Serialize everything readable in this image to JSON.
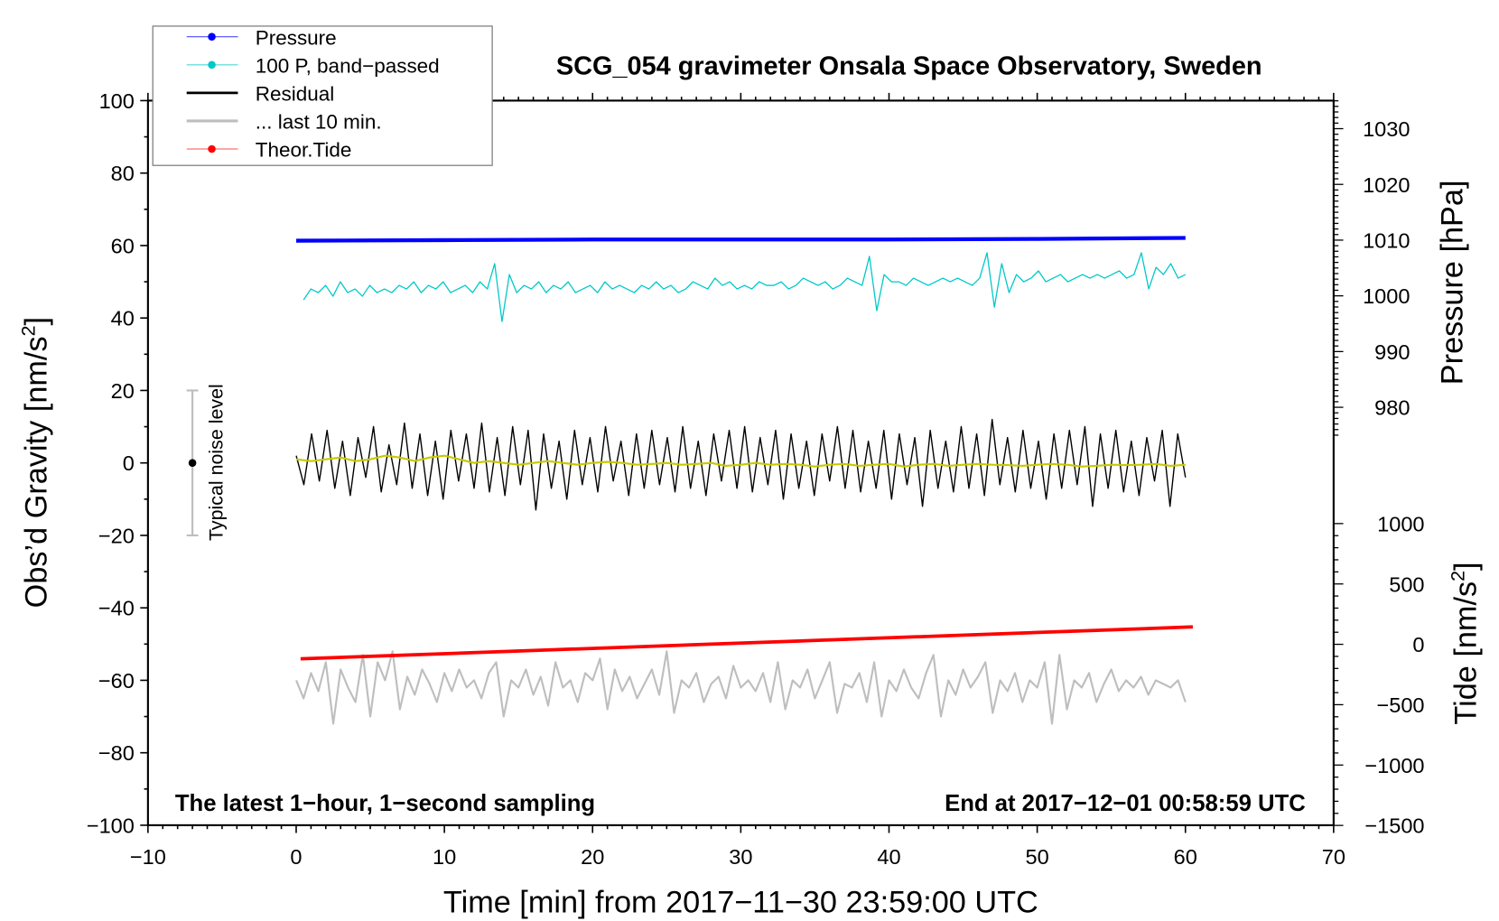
{
  "chart_data": {
    "type": "line",
    "title": "SCG_054 gravimeter Onsala Space Observatory, Sweden",
    "xlabel": "Time [min] from 2017−11−30 23:59:00 UTC",
    "ylabel": "Obs’d Gravity [nm/s",
    "ylabel_sup": "2",
    "ylabel_end": "]",
    "y2label": "Pressure [hPa]",
    "y3label": "Tide [nm/s",
    "y3label_sup": "2",
    "y3label_end": "]",
    "annotation_left": "The latest 1−hour, 1−second sampling",
    "annotation_right": "End at 2017−12−01 00:58:59 UTC",
    "noise_label": "Typical noise level",
    "xlim": [
      -10,
      70
    ],
    "ylim": [
      -100,
      100
    ],
    "y2lim": [
      980,
      1030
    ],
    "y3lim": [
      -1500,
      1000
    ],
    "xticks": [
      "−10",
      "0",
      "10",
      "20",
      "30",
      "40",
      "50",
      "60",
      "70"
    ],
    "yticks": [
      "100",
      "80",
      "60",
      "40",
      "20",
      "0",
      "−20",
      "−40",
      "−60",
      "−80",
      "−100"
    ],
    "y2ticks": [
      "1030",
      "1020",
      "1010",
      "1000",
      "990",
      "980"
    ],
    "y3ticks": [
      "1000",
      "500",
      "0",
      "−500",
      "−1000",
      "−1500"
    ],
    "grid": false,
    "legend_position": "top-left",
    "legend": [
      "Pressure",
      "100 P, band−passed",
      "Residual",
      "... last 10 min.",
      "Theor.Tide"
    ],
    "colors": {
      "pressure": "#0000ff",
      "bandpassed": "#00c8c8",
      "residual": "#000000",
      "smoothed": "#c8c800",
      "last10": "#bebebe",
      "tide": "#ff0000"
    },
    "noise_bar": {
      "x": -7,
      "low": -20,
      "high": 20,
      "center": 0
    },
    "series": [
      {
        "name": "Pressure",
        "axis": "pressure_hPa",
        "x": [
          0,
          10,
          20,
          30,
          40,
          50,
          60
        ],
        "values": [
          1009.9,
          1010.0,
          1010.1,
          1010.1,
          1010.1,
          1010.2,
          1010.4
        ]
      },
      {
        "name": "100 P, band-passed",
        "axis": "gravity",
        "x_range": [
          0.5,
          60
        ],
        "values": [
          45,
          48,
          47,
          49,
          46,
          50,
          47,
          48,
          46,
          49,
          47,
          48,
          47,
          49,
          48,
          50,
          47,
          49,
          48,
          50,
          47,
          48,
          49,
          47,
          50,
          48,
          55,
          39,
          52,
          47,
          49,
          48,
          50,
          47,
          49,
          48,
          50,
          47,
          48,
          49,
          47,
          50,
          48,
          49,
          48,
          47,
          49,
          48,
          50,
          48,
          49,
          47,
          48,
          50,
          49,
          48,
          51,
          49,
          50,
          48,
          49,
          48,
          50,
          49,
          49,
          50,
          48,
          49,
          51,
          50,
          49,
          50,
          48,
          49,
          51,
          50,
          49,
          57,
          42,
          52,
          50,
          50,
          49,
          51,
          50,
          49,
          50,
          51,
          50,
          51,
          50,
          49,
          51,
          58,
          43,
          55,
          47,
          52,
          50,
          51,
          53,
          50,
          51,
          52,
          50,
          51,
          52,
          51,
          52,
          51,
          52,
          53,
          51,
          52,
          58,
          48,
          54,
          52,
          55,
          51,
          52
        ]
      },
      {
        "name": "Residual",
        "axis": "gravity",
        "x_range": [
          0,
          60
        ],
        "values": [
          2,
          -6,
          8,
          -5,
          9,
          -7,
          6,
          -9,
          7,
          -4,
          10,
          -8,
          5,
          -6,
          11,
          -7,
          8,
          -9,
          6,
          -10,
          9,
          -5,
          8,
          -7,
          11,
          -8,
          7,
          -9,
          10,
          -6,
          9,
          -13,
          8,
          -7,
          6,
          -10,
          9,
          -6,
          7,
          -8,
          10,
          -5,
          6,
          -9,
          8,
          -7,
          9,
          -6,
          7,
          -8,
          10,
          -7,
          6,
          -9,
          8,
          -5,
          9,
          -7,
          10,
          -8,
          7,
          -6,
          9,
          -10,
          8,
          -7,
          6,
          -9,
          8,
          -5,
          10,
          -7,
          9,
          -8,
          6,
          -7,
          9,
          -10,
          8,
          -6,
          7,
          -12,
          9,
          -7,
          6,
          -8,
          10,
          -7,
          8,
          -9,
          12,
          -6,
          7,
          -8,
          9,
          -7,
          6,
          -10,
          8,
          -7,
          9,
          -6,
          10,
          -12,
          8,
          -7,
          9,
          -8,
          6,
          -9,
          7,
          -5,
          9,
          -12,
          8,
          -4
        ]
      },
      {
        "name": "Residual (smoothed)",
        "axis": "gravity",
        "x_range": [
          0,
          60
        ],
        "values": [
          1,
          0.5,
          1,
          1.5,
          0.5,
          1,
          2,
          1.5,
          0.5,
          1.5,
          2,
          1,
          0,
          0.5,
          0,
          -0.5,
          0,
          0.5,
          0,
          -0.5,
          0,
          0.3,
          0,
          -0.5,
          -0.3,
          0,
          -0.5,
          -0.3,
          0,
          -0.8,
          -0.5,
          0,
          -0.5,
          -0.3,
          -0.5,
          -1,
          -0.5,
          -0.3,
          -0.8,
          -0.5,
          -0.3,
          -1,
          -0.5,
          -0.3,
          -0.8,
          -0.5,
          -0.3,
          -0.5,
          -0.6,
          -0.8,
          -0.5,
          -0.3,
          -0.5,
          -1,
          -0.8,
          -0.5,
          -0.6,
          -0.5,
          -0.3,
          -0.8,
          -0.5
        ]
      },
      {
        "name": "... last 10 min.",
        "axis": "gravity",
        "x_range": [
          0,
          60
        ],
        "values": [
          -60,
          -65,
          -58,
          -63,
          -55,
          -72,
          -57,
          -62,
          -66,
          -53,
          -70,
          -55,
          -60,
          -52,
          -68,
          -59,
          -64,
          -57,
          -61,
          -66,
          -58,
          -63,
          -57,
          -62,
          -60,
          -65,
          -58,
          -55,
          -70,
          -60,
          -62,
          -57,
          -64,
          -59,
          -67,
          -55,
          -62,
          -60,
          -66,
          -58,
          -60,
          -54,
          -68,
          -57,
          -63,
          -59,
          -65,
          -61,
          -57,
          -64,
          -52,
          -69,
          -60,
          -62,
          -58,
          -66,
          -61,
          -59,
          -65,
          -56,
          -62,
          -60,
          -63,
          -58,
          -66,
          -55,
          -68,
          -60,
          -62,
          -57,
          -65,
          -60,
          -55,
          -69,
          -61,
          -62,
          -58,
          -66,
          -55,
          -70,
          -60,
          -63,
          -57,
          -62,
          -65,
          -58,
          -53,
          -70,
          -60,
          -64,
          -57,
          -62,
          -59,
          -55,
          -69,
          -60,
          -63,
          -58,
          -66,
          -60,
          -62,
          -55,
          -72,
          -53,
          -68,
          -60,
          -62,
          -58,
          -66,
          -61,
          -57,
          -63,
          -60,
          -62,
          -59,
          -64,
          -60,
          -61,
          -62,
          -60,
          -66
        ]
      },
      {
        "name": "Theor.Tide",
        "axis": "tide",
        "x": [
          0.3,
          60.5
        ],
        "values": [
          -120,
          144
        ]
      }
    ]
  }
}
